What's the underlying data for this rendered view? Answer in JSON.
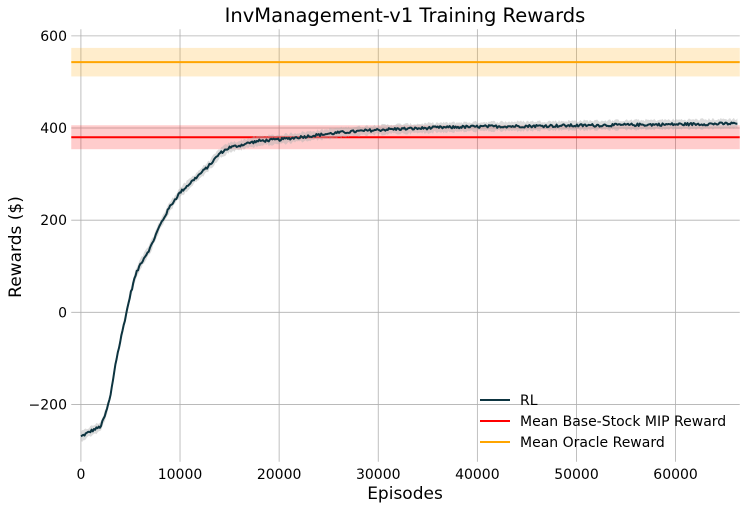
{
  "chart_data": {
    "type": "line",
    "title": "InvManagement-v1 Training Rewards",
    "xlabel": "Episodes",
    "ylabel": "Rewards ($)",
    "xlim": [
      -1000,
      66500
    ],
    "ylim": [
      -325,
      615
    ],
    "xticks": [
      0,
      10000,
      20000,
      30000,
      40000,
      50000,
      60000
    ],
    "xtick_labels": [
      "0",
      "10000",
      "20000",
      "30000",
      "40000",
      "50000",
      "60000"
    ],
    "yticks": [
      -200,
      0,
      200,
      400,
      600
    ],
    "ytick_labels": [
      "−200",
      "0",
      "200",
      "400",
      "600"
    ],
    "grid": true,
    "legend_position": "bottom-right",
    "series": [
      {
        "name": "RL",
        "color": "#0d3440",
        "band_color": "#b0b0b0",
        "x": [
          0,
          1000,
          2000,
          2500,
          3000,
          3500,
          4000,
          4500,
          5000,
          5500,
          6000,
          7000,
          8000,
          9000,
          10000,
          11000,
          12000,
          13000,
          14000,
          15000,
          16000,
          17000,
          18000,
          20000,
          22000,
          24000,
          26000,
          28000,
          30000,
          32000,
          34000,
          36000,
          38000,
          40000,
          44000,
          48000,
          52000,
          56000,
          60000,
          64000,
          66300
        ],
        "y": [
          -270,
          -258,
          -248,
          -220,
          -180,
          -110,
          -60,
          -10,
          40,
          80,
          105,
          140,
          190,
          230,
          260,
          280,
          300,
          320,
          345,
          358,
          362,
          368,
          372,
          375,
          380,
          385,
          390,
          393,
          396,
          398,
          399,
          401,
          402,
          403,
          404,
          405,
          406,
          407,
          408,
          409,
          410
        ],
        "band": 10
      },
      {
        "name": "Mean Base-Stock MIP Reward",
        "color": "#ff0000",
        "band_color": "#ff0000",
        "mean": 380,
        "band": [
          354,
          406
        ]
      },
      {
        "name": "Mean Oracle Reward",
        "color": "#ffa500",
        "band_color": "#ffa500",
        "mean": 543,
        "band": [
          512,
          574
        ]
      }
    ]
  }
}
